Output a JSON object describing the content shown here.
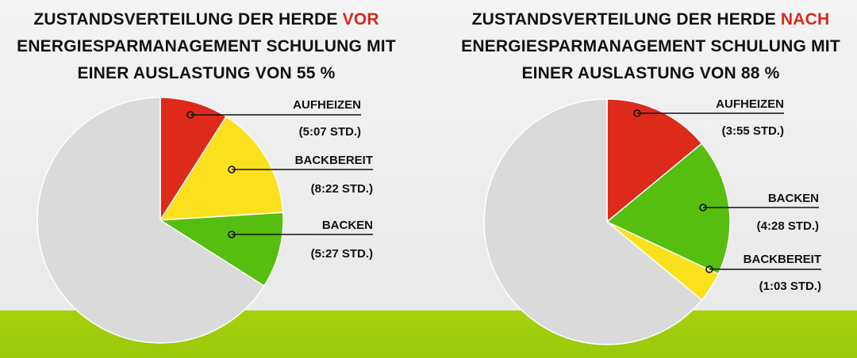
{
  "chart_data": [
    {
      "type": "pie",
      "title_parts": {
        "before": "ZUSTANDSVERTEILUNG DER HERDE ",
        "highlight": "VOR",
        "after": " ENERGIESPARMANAGEMENT SCHULUNG MIT EINER AUSLASTUNG VON 55 %"
      },
      "slices": [
        {
          "label": "AUFHEIZEN",
          "value_label": "(5:07 STD.)",
          "value": 0.09,
          "color": "#dd2a1b"
        },
        {
          "label": "BACKBEREIT",
          "value_label": "(8:22 STD.)",
          "value": 0.15,
          "color": "#fbe01e"
        },
        {
          "label": "BACKEN",
          "value_label": "(5:27 STD.)",
          "value": 0.1,
          "color": "#56be0f"
        },
        {
          "label": "",
          "value_label": "",
          "value": 0.66,
          "color": "#dadada"
        }
      ]
    },
    {
      "type": "pie",
      "title_parts": {
        "before": "ZUSTANDSVERTEILUNG DER HERDE ",
        "highlight": "NACH",
        "after": " ENERGIESPARMANAGEMENT SCHULUNG MIT EINER AUSLASTUNG VON 88 %"
      },
      "slices": [
        {
          "label": "AUFHEIZEN",
          "value_label": "(3:55 STD.)",
          "value": 0.14,
          "color": "#dd2a1b"
        },
        {
          "label": "BACKEN",
          "value_label": "(4:28 STD.)",
          "value": 0.18,
          "color": "#56be0f"
        },
        {
          "label": "BACKBEREIT",
          "value_label": "(1:03 STD.)",
          "value": 0.04,
          "color": "#fbe01e"
        },
        {
          "label": "",
          "value_label": "",
          "value": 0.64,
          "color": "#dadada"
        }
      ]
    }
  ]
}
